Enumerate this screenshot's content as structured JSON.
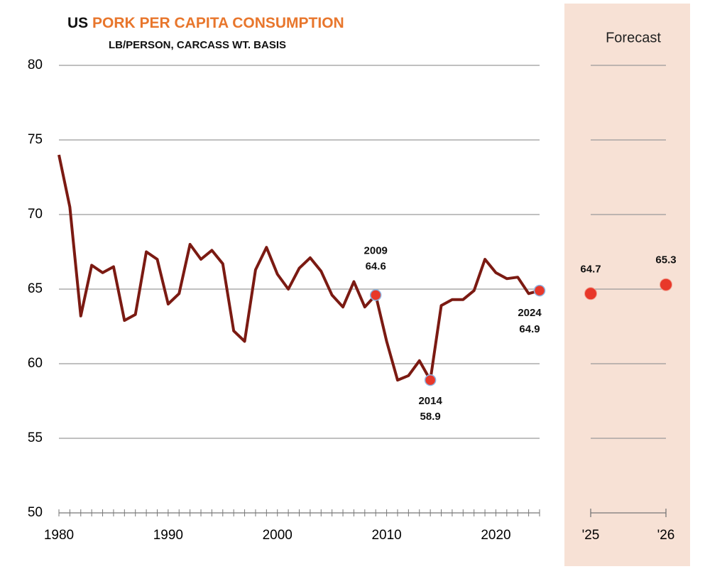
{
  "chart_data": [
    {
      "type": "line",
      "title": [
        "US",
        "PORK PER CAPITA CONSUMPTION"
      ],
      "subtitle": "LB/PERSON, CARCASS WT. BASIS",
      "x": [
        1980,
        1981,
        1982,
        1983,
        1984,
        1985,
        1986,
        1987,
        1988,
        1989,
        1990,
        1991,
        1992,
        1993,
        1994,
        1995,
        1996,
        1997,
        1998,
        1999,
        2000,
        2001,
        2002,
        2003,
        2004,
        2005,
        2006,
        2007,
        2008,
        2009,
        2010,
        2011,
        2012,
        2013,
        2014,
        2015,
        2016,
        2017,
        2018,
        2019,
        2020,
        2021,
        2022,
        2023,
        2024
      ],
      "values": [
        74.0,
        70.5,
        63.2,
        66.6,
        66.1,
        66.5,
        62.9,
        63.3,
        67.5,
        67.0,
        64.0,
        64.7,
        68.0,
        67.0,
        67.6,
        66.7,
        62.2,
        61.5,
        66.3,
        67.8,
        66.0,
        65.0,
        66.4,
        67.1,
        66.2,
        64.6,
        63.8,
        65.5,
        63.8,
        64.6,
        61.5,
        58.9,
        59.2,
        60.2,
        58.9,
        63.9,
        64.3,
        64.3,
        64.9,
        67.0,
        66.1,
        65.7,
        65.8,
        64.7,
        64.9
      ],
      "color": "#7b1a12",
      "annotations": [
        {
          "x": 2009,
          "y": 64.6
        },
        {
          "x": 2014,
          "y": 58.9
        },
        {
          "x": 2024,
          "y": 64.9
        }
      ],
      "xlim": [
        1980,
        2024
      ],
      "xticks": [
        1980,
        1990,
        2000,
        2010,
        2020
      ],
      "ylim": [
        50,
        80
      ],
      "yticks": [
        50,
        55,
        60,
        65,
        70,
        75,
        80
      ],
      "grid": true
    },
    {
      "type": "scatter",
      "title": "Forecast",
      "categories": [
        "'25",
        "'26"
      ],
      "values": [
        64.7,
        65.3
      ],
      "color": "#e8382a",
      "ylim": [
        50,
        80
      ],
      "yticks": [
        50,
        55,
        60,
        65,
        70,
        75,
        80
      ],
      "grid": true
    }
  ]
}
